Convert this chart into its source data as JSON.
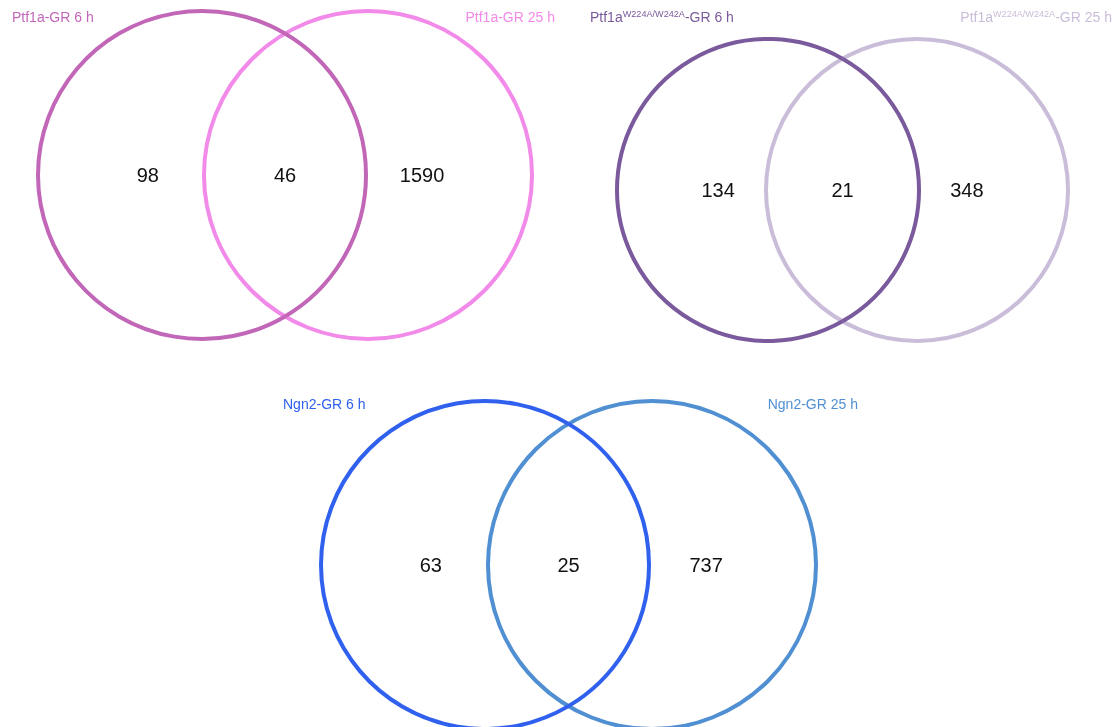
{
  "chart_data": [
    {
      "type": "other",
      "categories": [
        "Ptf1a-GR 6 h",
        null,
        "Ptf1a-GR 25 h"
      ],
      "values": [
        98,
        46,
        1590
      ],
      "colors": [
        "#c266b8",
        "#c266b8",
        "#f28ae9"
      ],
      "data_labels": true
    },
    {
      "type": "other",
      "categories": [
        "Ptf1a$^{W224A/W242A}$-GR 6 h",
        null,
        "Ptf1a$^{W224A/W242A}$-GR 25 h"
      ],
      "values": [
        134,
        21,
        348
      ],
      "colors": [
        "#7a5a9c",
        "#7a5a9c",
        "#cabdd9"
      ],
      "data_labels": true
    },
    {
      "type": "other",
      "categories": [
        "Ngn2-GR 6 h",
        null,
        "Ngn2-GR 25 h"
      ],
      "values": [
        63,
        25,
        737
      ],
      "colors": [
        "#2f60ee",
        "#2f60ee",
        "#5090d2"
      ],
      "data_labels": true
    }
  ]
}
